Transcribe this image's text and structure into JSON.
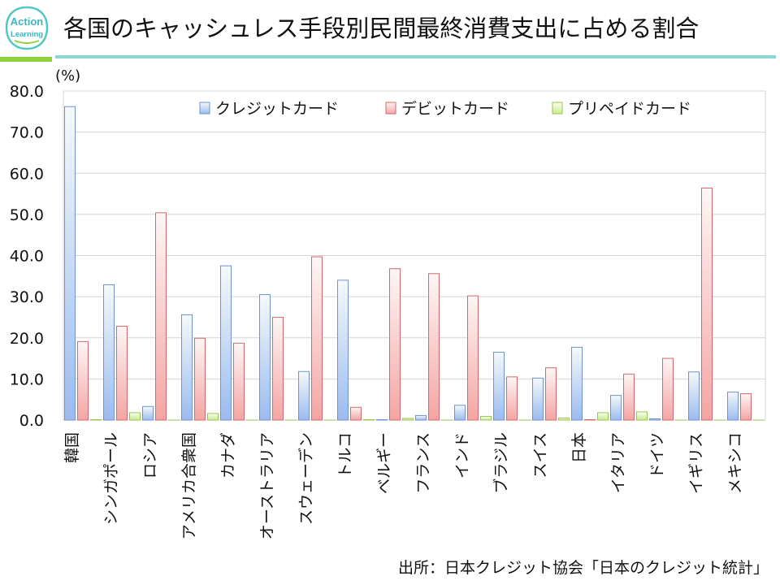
{
  "header": {
    "title": "各国のキャッシュレス手段別民間最終消費支出に占める割合",
    "logo_line1": "Action",
    "logo_line2": "Learning"
  },
  "footer": {
    "source": "出所：日本クレジット協会「日本のクレジット統計」"
  },
  "colors": {
    "credit": "#9bbcee",
    "debit": "#f4a5a5",
    "prepaid": "#c9eb8c",
    "rule": "#8dd6d6",
    "accent": "#8fd13a"
  },
  "chart_data": {
    "type": "bar",
    "title": "各国のキャッシュレス手段別民間最終消費支出に占める割合",
    "ylabel": "(%)",
    "xlabel": "",
    "ylim": [
      0,
      80
    ],
    "yticks": [
      "0.0",
      "10.0",
      "20.0",
      "30.0",
      "40.0",
      "50.0",
      "60.0",
      "70.0",
      "80.0"
    ],
    "legend_position": "top",
    "categories": [
      "韓国",
      "シンガポール",
      "ロシア",
      "アメリカ合衆国",
      "カナダ",
      "オーストラリア",
      "スウェーデン",
      "トルコ",
      "ベルギー",
      "フランス",
      "インド",
      "ブラジル",
      "スイス",
      "日本",
      "イタリア",
      "ドイツ",
      "イギリス",
      "メキシコ"
    ],
    "series": [
      {
        "name": "クレジットカード",
        "values": [
          76.2,
          32.9,
          3.3,
          25.6,
          37.5,
          30.5,
          11.8,
          34.0,
          0.1,
          1.1,
          3.6,
          16.5,
          10.2,
          17.7,
          6.0,
          0.3,
          11.7,
          6.8
        ]
      },
      {
        "name": "デビットカード",
        "values": [
          19.1,
          22.8,
          50.4,
          19.9,
          18.7,
          25.0,
          39.7,
          3.1,
          36.8,
          35.6,
          30.2,
          10.5,
          12.7,
          0.1,
          11.2,
          15.0,
          56.4,
          6.4
        ]
      },
      {
        "name": "プリペイドカード",
        "values": [
          0.1,
          1.8,
          0.0,
          1.6,
          0.0,
          0.0,
          0.0,
          0.1,
          0.4,
          0.0,
          0.9,
          0.0,
          0.5,
          1.8,
          2.0,
          0.0,
          0.0,
          0.0
        ]
      }
    ]
  }
}
